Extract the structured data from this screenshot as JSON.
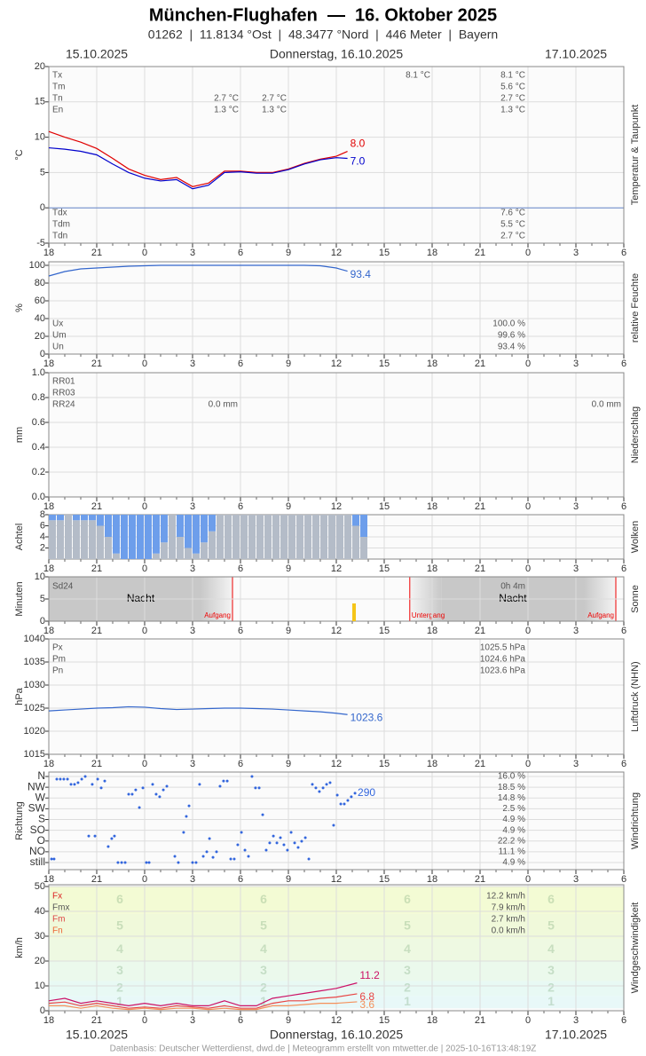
{
  "header": {
    "title": "München-Flughafen  —  16. Oktober 2025",
    "subtitle": "01262  |  11.8134 °Ost  |  48.3477 °Nord  |  446 Meter  |  Bayern"
  },
  "dates": [
    "15.10.2025",
    "Donnerstag, 16.10.2025",
    "17.10.2025"
  ],
  "footer": "Datenbasis: Deutscher Wetterdienst, dwd.de | Meteogramm erstellt von mtwetter.de | 2025-10-16T13:48:19Z",
  "x_axis": {
    "xlim": [
      0,
      36
    ],
    "xticks": [
      {
        "value": 0,
        "label": "18"
      },
      {
        "value": 3,
        "label": "21"
      },
      {
        "value": 6,
        "label": "0"
      },
      {
        "value": 9,
        "label": "3"
      },
      {
        "value": 12,
        "label": "6"
      },
      {
        "value": 15,
        "label": "9"
      },
      {
        "value": 18,
        "label": "12"
      },
      {
        "value": 21,
        "label": "15"
      },
      {
        "value": 24,
        "label": "18"
      },
      {
        "value": 27,
        "label": "21"
      },
      {
        "value": 30,
        "label": "0"
      },
      {
        "value": 33,
        "label": "3"
      },
      {
        "value": 36,
        "label": "6"
      }
    ]
  },
  "chart_data": [
    {
      "type": "line",
      "ylabel": "°C",
      "side_label": "Temperatur & Taupunkt",
      "ylim": [
        -5,
        20
      ],
      "yticks": [
        -5,
        0,
        5,
        10,
        15,
        20
      ],
      "x": [
        0,
        1,
        2,
        3,
        4,
        5,
        6,
        7,
        8,
        9,
        10,
        11,
        12,
        13,
        14,
        15,
        16,
        17,
        18,
        18.7
      ],
      "series": [
        {
          "color": "#e00000",
          "end_label": "8.0",
          "values": [
            10.8,
            10,
            9.3,
            8.4,
            7,
            5.5,
            4.6,
            4,
            4.3,
            3,
            3.5,
            5.2,
            5.2,
            5,
            5,
            5.5,
            6.3,
            6.9,
            7.3,
            8.0
          ]
        },
        {
          "color": "#0000cc",
          "end_label": "7.0",
          "values": [
            8.5,
            8.3,
            8,
            7.5,
            6.2,
            5,
            4.2,
            3.8,
            4,
            2.7,
            3.2,
            5,
            5.1,
            4.9,
            4.9,
            5.4,
            6.2,
            6.8,
            7.1,
            7.0
          ]
        }
      ],
      "stats": [
        {
          "label": "Tx",
          "cells": [
            "8.1 °C",
            "8.1 °C"
          ]
        },
        {
          "label": "Tm",
          "cells": [
            "5.6 °C"
          ]
        },
        {
          "label": "Tn",
          "cells": [
            "2.7 °C",
            "2.7 °C",
            "2.7 °C"
          ]
        },
        {
          "label": "En",
          "cells": [
            "1.3 °C",
            "1.3 °C",
            "1.3 °C"
          ]
        }
      ],
      "stats_bottom": [
        {
          "label": "Tdx",
          "cells": [
            "7.6 °C"
          ]
        },
        {
          "label": "Tdm",
          "cells": [
            "5.5 °C"
          ]
        },
        {
          "label": "Tdn",
          "cells": [
            "2.7 °C"
          ]
        }
      ]
    },
    {
      "type": "line",
      "ylabel": "%",
      "side_label": "relative Feuchte",
      "ylim": [
        0,
        100
      ],
      "yticks": [
        0,
        20,
        40,
        60,
        80,
        100
      ],
      "x": [
        0,
        1,
        2,
        3,
        4,
        5,
        6,
        7,
        8,
        9,
        10,
        11,
        12,
        13,
        14,
        15,
        16,
        17,
        18,
        18.7
      ],
      "series": [
        {
          "color": "#3366cc",
          "values": [
            88,
            93,
            96,
            97,
            98,
            99,
            99.5,
            100,
            100,
            100,
            100,
            100,
            100,
            100,
            100,
            100,
            100,
            99.5,
            97,
            93.4
          ]
        }
      ],
      "stats": [
        {
          "label": "Ux",
          "cells": [
            "100.0 %"
          ]
        },
        {
          "label": "Um",
          "cells": [
            "99.6 %"
          ]
        },
        {
          "label": "Un",
          "cells": [
            "93.4 %"
          ]
        }
      ]
    },
    {
      "type": "bar",
      "ylabel": "mm",
      "side_label": "Niederschlag",
      "ylim": [
        0,
        1
      ],
      "yticks": [
        {
          "value": 0,
          "label": "0.0"
        },
        0.2,
        0.4,
        0.6,
        0.8,
        {
          "value": 1,
          "label": "1.0"
        }
      ],
      "stats": [
        {
          "label": "RR01",
          "cells": []
        },
        {
          "label": "RR03",
          "cells": []
        },
        {
          "label": "RR24",
          "cells": [
            "0.0 mm",
            "0.0 mm"
          ]
        }
      ]
    },
    {
      "type": "cloud",
      "ylabel": "Achtel",
      "side_label": "Wolken",
      "ylim": [
        0,
        8
      ],
      "yticks": [
        2,
        4,
        6,
        8
      ],
      "color": "#6d9eeb",
      "x": [
        0,
        0.5,
        1,
        1.5,
        2,
        2.5,
        3,
        3.5,
        4,
        4.5,
        5,
        5.5,
        6,
        6.5,
        7,
        7.5,
        8,
        8.5,
        9,
        9.5,
        10,
        10.5,
        11,
        11.5,
        12,
        12.5,
        13,
        13.5,
        14,
        14.5,
        15,
        15.5,
        16,
        16.5,
        17,
        17.5,
        18,
        18.5,
        19,
        19.5
      ],
      "values": [
        7,
        7,
        8,
        7,
        7,
        7,
        6,
        4,
        1,
        0,
        0,
        0,
        0,
        1,
        3,
        8,
        4,
        2,
        1,
        3,
        5,
        8,
        8,
        8,
        8,
        8,
        8,
        8,
        8,
        8,
        8,
        8,
        8,
        8,
        8,
        8,
        8,
        8,
        6,
        4
      ]
    },
    {
      "type": "sun",
      "ylabel": "Minuten",
      "side_label": "Sonne",
      "ylim": [
        0,
        10
      ],
      "yticks": [
        0,
        5,
        10
      ],
      "color": "#f5c518",
      "x": [
        19
      ],
      "values": [
        4
      ],
      "total_label": "Sd24",
      "total": "0h 4m",
      "night_labels": [
        "Nacht",
        "Nacht"
      ],
      "sun_events": [
        {
          "label": "Aufgang",
          "x": 11.5
        },
        {
          "label": "Untergang",
          "x": 22.6
        },
        {
          "label": "Aufgang",
          "x": 35.5
        }
      ]
    },
    {
      "type": "line",
      "ylabel": "hPa",
      "side_label": "Luftdruck (NHN)",
      "ylim": [
        1015,
        1040
      ],
      "yticks": [
        1015,
        1020,
        1025,
        1030,
        1035,
        1040
      ],
      "x": [
        0,
        1,
        2,
        3,
        4,
        5,
        6,
        7,
        8,
        9,
        10,
        11,
        12,
        13,
        14,
        15,
        16,
        17,
        18,
        18.7
      ],
      "series": [
        {
          "color": "#3366cc",
          "values": [
            1024.4,
            1024.6,
            1024.8,
            1025.0,
            1025.1,
            1025.3,
            1025.2,
            1024.9,
            1024.7,
            1024.8,
            1024.9,
            1025.0,
            1025.0,
            1024.9,
            1024.8,
            1024.6,
            1024.4,
            1024.2,
            1023.9,
            1023.6
          ]
        }
      ],
      "stats": [
        {
          "label": "Px",
          "cells": [
            "1025.5 hPa"
          ]
        },
        {
          "label": "Pm",
          "cells": [
            "1024.6 hPa"
          ]
        },
        {
          "label": "Pn",
          "cells": [
            "1023.6 hPa"
          ]
        }
      ]
    },
    {
      "type": "scatter",
      "ylabel": "Richtung",
      "side_label": "Windrichtung",
      "ylim": [
        0,
        360
      ],
      "yticks": [
        {
          "value": 360,
          "label": "N"
        },
        {
          "value": 315,
          "label": "NW"
        },
        {
          "value": 270,
          "label": "W"
        },
        {
          "value": 225,
          "label": "SW"
        },
        {
          "value": 180,
          "label": "S"
        },
        {
          "value": 135,
          "label": "SO"
        },
        {
          "value": 90,
          "label": "O"
        },
        {
          "value": 45,
          "label": "NO"
        },
        {
          "value": 0,
          "label": "still"
        }
      ],
      "percent_labels": [
        "16.0 %",
        "18.5 %",
        "14.8 %",
        "2.5 %",
        "4.9 %",
        "4.9 %",
        "22.2 %",
        "11.1 %",
        "4.9 %"
      ],
      "x": [
        0.17,
        0.33,
        0.5,
        0.72,
        0.94,
        1.17,
        1.39,
        1.61,
        1.83,
        2.06,
        2.28,
        2.5,
        2.72,
        2.89,
        3.06,
        3.28,
        3.5,
        3.72,
        3.94,
        4.11,
        4.33,
        4.56,
        4.78,
        5.0,
        5.22,
        5.44,
        5.67,
        5.89,
        6.11,
        6.28,
        6.5,
        6.72,
        6.94,
        7.17,
        7.39,
        7.89,
        8.11,
        8.44,
        8.61,
        8.78,
        9.0,
        9.22,
        9.44,
        9.67,
        9.89,
        10.06,
        10.28,
        10.5,
        10.72,
        10.94,
        11.17,
        11.39,
        11.61,
        11.83,
        12.06,
        12.28,
        12.5,
        12.72,
        12.94,
        13.17,
        13.39,
        13.61,
        13.83,
        14.06,
        14.28,
        14.5,
        14.72,
        14.94,
        15.17,
        15.39,
        15.61,
        15.83,
        16.06,
        16.28,
        16.5,
        16.72,
        16.94,
        17.17,
        17.39,
        17.61,
        17.83,
        18.06,
        18.28,
        18.5,
        18.72,
        18.94,
        19.17
      ],
      "series": [
        {
          "color": "#3366dd",
          "values": [
            15,
            15,
            349,
            349,
            349,
            349,
            327,
            327,
            334,
            349,
            360,
            111,
            327,
            111,
            349,
            312,
            341,
            67,
            100,
            111,
            0,
            0,
            0,
            286,
            286,
            304,
            230,
            312,
            0,
            0,
            327,
            286,
            275,
            304,
            319,
            26,
            0,
            126,
            193,
            237,
            0,
            0,
            327,
            26,
            45,
            100,
            22,
            45,
            319,
            341,
            341,
            15,
            15,
            74,
            126,
            52,
            26,
            360,
            312,
            312,
            200,
            52,
            82,
            111,
            82,
            104,
            74,
            52,
            126,
            82,
            63,
            89,
            104,
            15,
            327,
            312,
            297,
            312,
            327,
            334,
            156,
            282,
            245,
            245,
            260,
            275,
            290
          ]
        }
      ]
    },
    {
      "type": "line",
      "ylabel": "km/h",
      "side_label": "Windgeschwindigkeit",
      "ylim": [
        0,
        50
      ],
      "yticks": [
        0,
        10,
        20,
        30,
        40,
        50
      ],
      "beaufort": {
        "bounds": [
          1,
          6,
          12,
          20,
          29,
          39,
          50
        ],
        "labels": [
          "1",
          "2",
          "3",
          "4",
          "5",
          "6"
        ]
      },
      "x": [
        0,
        1,
        2,
        3,
        4,
        5,
        6,
        7,
        8,
        9,
        10,
        11,
        12,
        13,
        14,
        15,
        16,
        17,
        18,
        19.3
      ],
      "series": [
        {
          "color": "#cc1166",
          "values": [
            4,
            5,
            3,
            4,
            3,
            2,
            3,
            2,
            3,
            2,
            2,
            4,
            2,
            2,
            5,
            6,
            7,
            8,
            9,
            11.2
          ]
        },
        {
          "color": "#e84444",
          "values": [
            3,
            3.5,
            2,
            3,
            2,
            1,
            1.5,
            1,
            2,
            1.5,
            1,
            2,
            1,
            1,
            3,
            4,
            4,
            5,
            5.5,
            6.8
          ]
        },
        {
          "color": "#f5905a",
          "values": [
            2,
            2,
            1,
            2,
            1,
            0.5,
            1,
            0.5,
            1,
            1,
            0.5,
            1,
            0.5,
            0.5,
            2,
            2,
            2.5,
            3,
            3,
            3.6
          ]
        }
      ],
      "stats": [
        {
          "label": "Fx",
          "cells": [
            "12.2 km/h"
          ]
        },
        {
          "label": "Fmx",
          "cells": [
            "7.9 km/h"
          ]
        },
        {
          "label": "Fm",
          "cells": [
            "2.7 km/h"
          ]
        },
        {
          "label": "Fn",
          "cells": [
            "0.0 km/h"
          ]
        }
      ]
    }
  ]
}
